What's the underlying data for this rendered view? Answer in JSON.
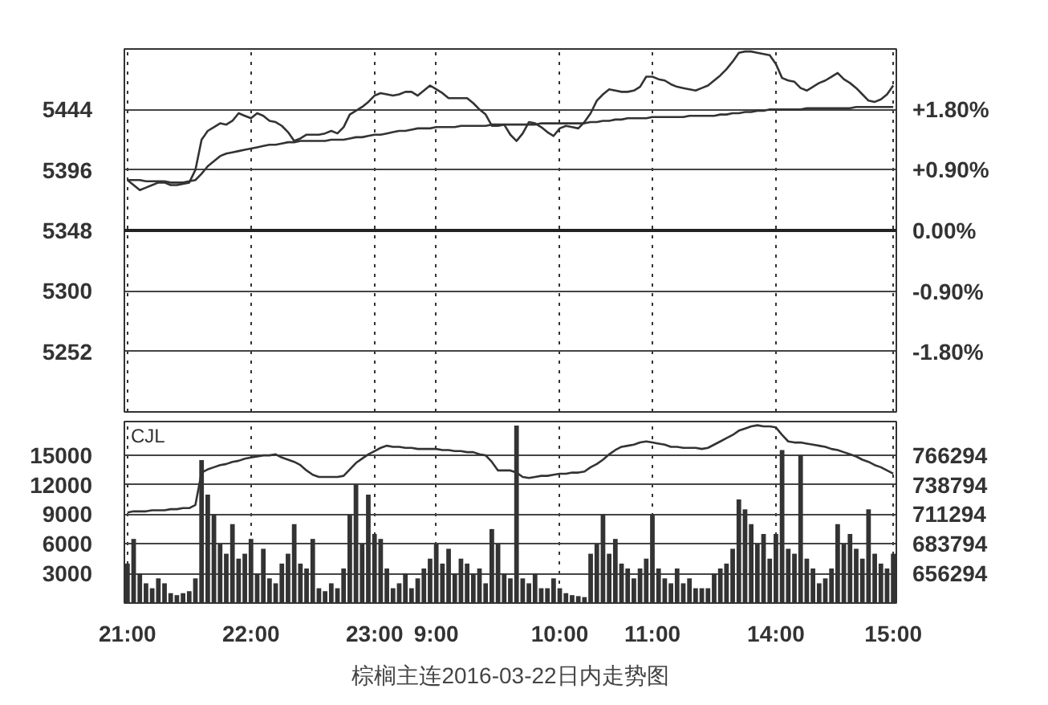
{
  "chart_data": [
    {
      "type": "line",
      "ylim": [
        5204,
        5492
      ],
      "yticks": [
        5252,
        5300,
        5348,
        5396,
        5444
      ],
      "y2lim": [
        -2.693,
        2.693
      ],
      "y2ticks": [
        {
          "value": -1.8,
          "label": "-1.80%"
        },
        {
          "value": -0.9,
          "label": "-0.90%"
        },
        {
          "value": 0,
          "label": "0.00%"
        },
        {
          "value": 0.9,
          "label": "+0.90%"
        },
        {
          "value": 1.8,
          "label": "+1.80%"
        }
      ],
      "categories": [
        null,
        null,
        null,
        null,
        null,
        null,
        null,
        null,
        null,
        null,
        null,
        null,
        null,
        null,
        null,
        null,
        null,
        null,
        null,
        null,
        null,
        null,
        null,
        null,
        null,
        null,
        null,
        null,
        null,
        null,
        null,
        null,
        null,
        null,
        null,
        null,
        null,
        null,
        null,
        null,
        null,
        null,
        null,
        null,
        null,
        null,
        null,
        null,
        null,
        null,
        null,
        null,
        null,
        null,
        null,
        null,
        null,
        null,
        null,
        null,
        null,
        null,
        null,
        null,
        null,
        null,
        null,
        null,
        null,
        null,
        null,
        null,
        null,
        null,
        null,
        null,
        null,
        null,
        null,
        null,
        null,
        null,
        null,
        null,
        null,
        null,
        null,
        null,
        null,
        null,
        null,
        null,
        null,
        null,
        null,
        null,
        null,
        null,
        null,
        null,
        null,
        null,
        null,
        null,
        null,
        null,
        null,
        null,
        null,
        null,
        null,
        null,
        null,
        null,
        null,
        null,
        null,
        null,
        null,
        null,
        null,
        null,
        null,
        null,
        null
      ],
      "tick_labels": "y",
      "grid": true,
      "ref_lines": [
        {
          "axis": "y",
          "value": 5348,
          "line_style": "solid"
        }
      ],
      "series": [
        {
          "color": "#333333",
          "values": [
            5388,
            5384,
            5380,
            5382,
            5384,
            5386,
            5386,
            5384,
            5384,
            5385,
            5386,
            5396,
            5420,
            5427,
            5430,
            5433,
            5432,
            5435,
            5441,
            5439,
            5437,
            5441,
            5439,
            5435,
            5434,
            5431,
            5426,
            5419,
            5421,
            5424,
            5424,
            5424,
            5425,
            5427,
            5425,
            5430,
            5440,
            5443,
            5446,
            5450,
            5455,
            5457,
            5456,
            5455,
            5456,
            5458,
            5458,
            5455,
            5459,
            5463,
            5460,
            5457,
            5453,
            5453,
            5453,
            5453,
            5449,
            5444,
            5440,
            5431,
            5431,
            5432,
            5424,
            5419,
            5425,
            5434,
            5433,
            5430,
            5426,
            5423,
            5429,
            5431,
            5430,
            5429,
            5434,
            5441,
            5451,
            5456,
            5460,
            5459,
            5458,
            5458,
            5459,
            5462,
            5470,
            5470,
            5468,
            5467,
            5464,
            5462,
            5461,
            5460,
            5459,
            5461,
            5463,
            5467,
            5471,
            5476,
            5482,
            5489,
            5490,
            5490,
            5489,
            5488,
            5487,
            5480,
            5469,
            5467,
            5466,
            5461,
            5459,
            5462,
            5465,
            5467,
            5470,
            5473,
            5468,
            5465,
            5461,
            5456,
            5451,
            5450,
            5452,
            5456,
            5463
          ]
        },
        {
          "color": "#333333",
          "values": [
            5388,
            5388,
            5388,
            5387,
            5387,
            5387,
            5387,
            5386,
            5386,
            5386,
            5387,
            5388,
            5393,
            5399,
            5403,
            5407,
            5409,
            5410,
            5411,
            5412,
            5413,
            5414,
            5415,
            5416,
            5416,
            5417,
            5418,
            5418,
            5419,
            5419,
            5419,
            5419,
            5419,
            5420,
            5420,
            5420,
            5421,
            5422,
            5422,
            5423,
            5424,
            5424,
            5425,
            5426,
            5427,
            5427,
            5428,
            5429,
            5429,
            5429,
            5430,
            5430,
            5430,
            5430,
            5431,
            5431,
            5431,
            5431,
            5431,
            5432,
            5432,
            5432,
            5432,
            5432,
            5432,
            5432,
            5432,
            5433,
            5433,
            5433,
            5433,
            5433,
            5433,
            5433,
            5433,
            5434,
            5434,
            5435,
            5435,
            5436,
            5436,
            5437,
            5437,
            5437,
            5437,
            5438,
            5438,
            5438,
            5438,
            5438,
            5438,
            5439,
            5439,
            5439,
            5439,
            5439,
            5440,
            5440,
            5441,
            5441,
            5442,
            5442,
            5443,
            5443,
            5444,
            5444,
            5444,
            5444,
            5444,
            5444,
            5445,
            5445,
            5445,
            5445,
            5445,
            5445,
            5445,
            5445,
            5446,
            5446,
            5446,
            5446,
            5446,
            5446,
            5446
          ]
        }
      ]
    },
    {
      "type": "bar",
      "title": "棕榈主连2016-03-22日内走势图",
      "annotations": [
        "CJL"
      ],
      "ylim": [
        0,
        18400
      ],
      "yticks": [
        3000,
        6000,
        9000,
        12000,
        15000
      ],
      "y2lim": [
        628794,
        797461
      ],
      "y2ticks": [
        656294,
        683794,
        711294,
        738794,
        766294
      ],
      "categories": [
        "21:00",
        null,
        null,
        null,
        null,
        null,
        null,
        null,
        null,
        null,
        null,
        null,
        null,
        null,
        null,
        null,
        null,
        null,
        null,
        null,
        "22:00",
        null,
        null,
        null,
        null,
        null,
        null,
        null,
        null,
        null,
        null,
        null,
        null,
        null,
        null,
        null,
        null,
        null,
        null,
        null,
        "23:00",
        null,
        null,
        null,
        null,
        null,
        null,
        null,
        null,
        null,
        "9:00",
        null,
        null,
        null,
        null,
        null,
        null,
        null,
        null,
        null,
        null,
        null,
        null,
        null,
        null,
        null,
        null,
        null,
        null,
        null,
        "10:00",
        null,
        null,
        null,
        null,
        null,
        null,
        null,
        null,
        null,
        null,
        null,
        null,
        null,
        null,
        "11:00",
        null,
        null,
        null,
        null,
        null,
        null,
        null,
        null,
        null,
        null,
        null,
        null,
        null,
        null,
        null,
        null,
        null,
        null,
        null,
        "14:00",
        null,
        null,
        null,
        null,
        null,
        null,
        null,
        null,
        null,
        null,
        null,
        null,
        null,
        null,
        null,
        null,
        null,
        null,
        "15:00"
      ],
      "grid": true,
      "series": [
        {
          "type": "bar",
          "color": "#333333",
          "values": [
            4000,
            6500,
            3000,
            2000,
            1500,
            2500,
            2000,
            1000,
            800,
            1000,
            1200,
            2500,
            14500,
            11000,
            9000,
            6000,
            5000,
            8000,
            4500,
            5000,
            6500,
            3000,
            5500,
            2500,
            2000,
            4000,
            5000,
            8000,
            4000,
            3500,
            6500,
            1500,
            1200,
            2000,
            1500,
            3500,
            9000,
            12000,
            6000,
            11000,
            7000,
            6500,
            3500,
            1500,
            2000,
            3000,
            1500,
            2500,
            3500,
            4500,
            6000,
            4000,
            5500,
            3000,
            4500,
            4000,
            3000,
            3500,
            2000,
            7500,
            6000,
            3000,
            2500,
            18000,
            2500,
            2000,
            3000,
            1500,
            1500,
            2500,
            1500,
            1000,
            800,
            700,
            600,
            5000,
            6000,
            9000,
            5000,
            6500,
            4000,
            3500,
            2500,
            3500,
            4500,
            9000,
            3500,
            2500,
            2000,
            3500,
            2000,
            2500,
            1500,
            1500,
            1500,
            3000,
            3500,
            4000,
            5500,
            10500,
            9500,
            8000,
            6000,
            7000,
            4500,
            7000,
            15500,
            5500,
            5000,
            15000,
            4500,
            3500,
            2000,
            2500,
            3500,
            8000,
            6000,
            7000,
            5500,
            4500,
            9500,
            5000,
            4000,
            3500,
            5000
          ]
        },
        {
          "type": "line",
          "axis": "y2",
          "color": "#333333",
          "values": [
            713000,
            714000,
            714000,
            714000,
            715000,
            715000,
            715000,
            716000,
            716000,
            717000,
            717000,
            720000,
            750000,
            753000,
            755000,
            757000,
            758000,
            760000,
            761000,
            763000,
            764000,
            765000,
            766000,
            766000,
            767000,
            764000,
            762000,
            760000,
            757000,
            752000,
            748000,
            746000,
            746000,
            746000,
            746000,
            747000,
            753000,
            759000,
            763000,
            767000,
            770000,
            773000,
            775000,
            774000,
            774000,
            773000,
            773000,
            772000,
            772000,
            772000,
            772000,
            771000,
            771000,
            770000,
            770000,
            769000,
            769000,
            767000,
            766000,
            760000,
            752000,
            752000,
            752000,
            750000,
            746000,
            745000,
            746000,
            747000,
            747000,
            748000,
            749000,
            749000,
            750000,
            750000,
            751000,
            755000,
            758000,
            762000,
            767000,
            771000,
            774000,
            775000,
            776000,
            778000,
            779000,
            778000,
            777000,
            776000,
            774000,
            774000,
            773000,
            773000,
            773000,
            772000,
            773000,
            776000,
            779000,
            782000,
            785000,
            789000,
            791000,
            793000,
            794000,
            793000,
            793000,
            792000,
            785000,
            779000,
            778000,
            778000,
            777000,
            776000,
            775000,
            774000,
            772000,
            771000,
            769000,
            767000,
            765000,
            762000,
            760000,
            757000,
            755000,
            752000,
            749000
          ]
        }
      ]
    }
  ]
}
